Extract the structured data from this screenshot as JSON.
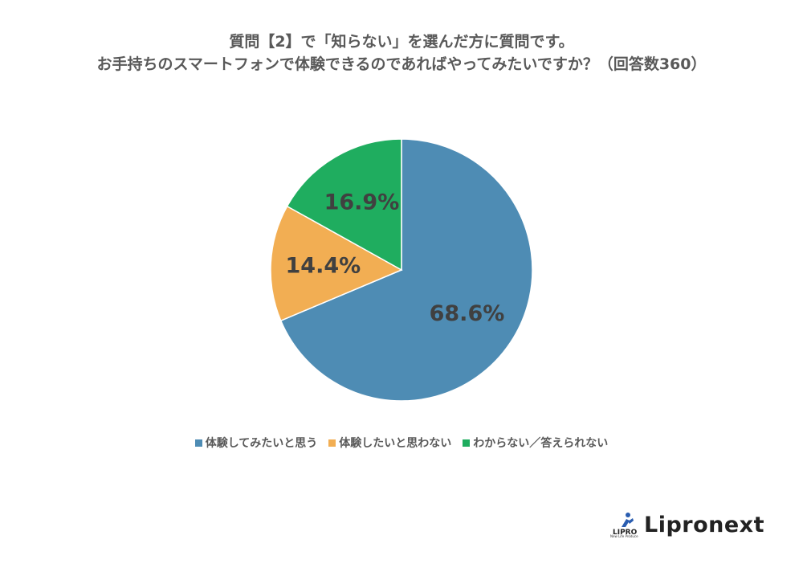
{
  "header": {
    "title_line1": "質問【2】で「知らない」を選んだ方に質問です。",
    "title_line2": "お手持ちのスマートフォンで体験できるのであればやってみたいですか？（回答数360）"
  },
  "chart_data": {
    "type": "pie",
    "title": "質問【2】で「知らない」を選んだ方に質問です。お手持ちのスマートフォンで体験できるのであればやってみたいですか？（回答数360）",
    "start_angle_deg": 0,
    "direction": "clockwise",
    "legend_position": "bottom",
    "slices": [
      {
        "label": "体験してみたいと思う",
        "value": 68.6,
        "display": "68.6%",
        "color": "#4E8CB4"
      },
      {
        "label": "体験したいと思わない",
        "value": 14.4,
        "display": "14.4%",
        "color": "#F2AE53"
      },
      {
        "label": "わからない／答えられない",
        "value": 16.9,
        "display": "16.9%",
        "color": "#1FAD5F"
      }
    ]
  },
  "brand": {
    "name": "Lipronext",
    "mark_text": "LIPRO",
    "mark_sub": "New Life Produce"
  }
}
